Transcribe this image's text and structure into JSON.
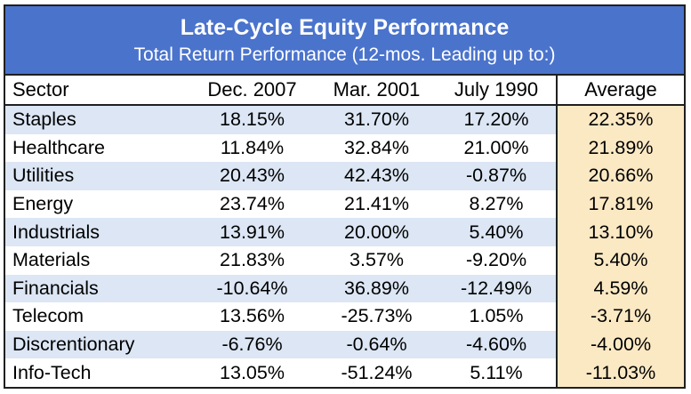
{
  "chart_data": {
    "type": "table",
    "title": "Late-Cycle Equity Performance",
    "subtitle": "Total Return Performance (12-mos. Leading up to:)",
    "columns": [
      "Sector",
      "Dec. 2007",
      "Mar. 2001",
      "July 1990",
      "Average"
    ],
    "rows": [
      {
        "sector": "Staples",
        "values": [
          "18.15%",
          "31.70%",
          "17.20%",
          "22.35%"
        ]
      },
      {
        "sector": "Healthcare",
        "values": [
          "11.84%",
          "32.84%",
          "21.00%",
          "21.89%"
        ]
      },
      {
        "sector": "Utilities",
        "values": [
          "20.43%",
          "42.43%",
          "-0.87%",
          "20.66%"
        ]
      },
      {
        "sector": "Energy",
        "values": [
          "23.74%",
          "21.41%",
          "8.27%",
          "17.81%"
        ]
      },
      {
        "sector": "Industrials",
        "values": [
          "13.91%",
          "20.00%",
          "5.40%",
          "13.10%"
        ]
      },
      {
        "sector": "Materials",
        "values": [
          "21.83%",
          "3.57%",
          "-9.20%",
          "5.40%"
        ]
      },
      {
        "sector": "Financials",
        "values": [
          "-10.64%",
          "36.89%",
          "-12.49%",
          "4.59%"
        ]
      },
      {
        "sector": "Telecom",
        "values": [
          "13.56%",
          "-25.73%",
          "1.05%",
          "-3.71%"
        ]
      },
      {
        "sector": "Discrentionary",
        "values": [
          "-6.76%",
          "-0.64%",
          "-4.60%",
          "-4.00%"
        ]
      },
      {
        "sector": "Info-Tech",
        "values": [
          "13.05%",
          "-51.24%",
          "5.11%",
          "-11.03%"
        ]
      }
    ],
    "colors": {
      "header_bg": "#4a73cc",
      "row_alt_bg": "#dce6f4",
      "average_bg": "#fbe9c4"
    }
  }
}
